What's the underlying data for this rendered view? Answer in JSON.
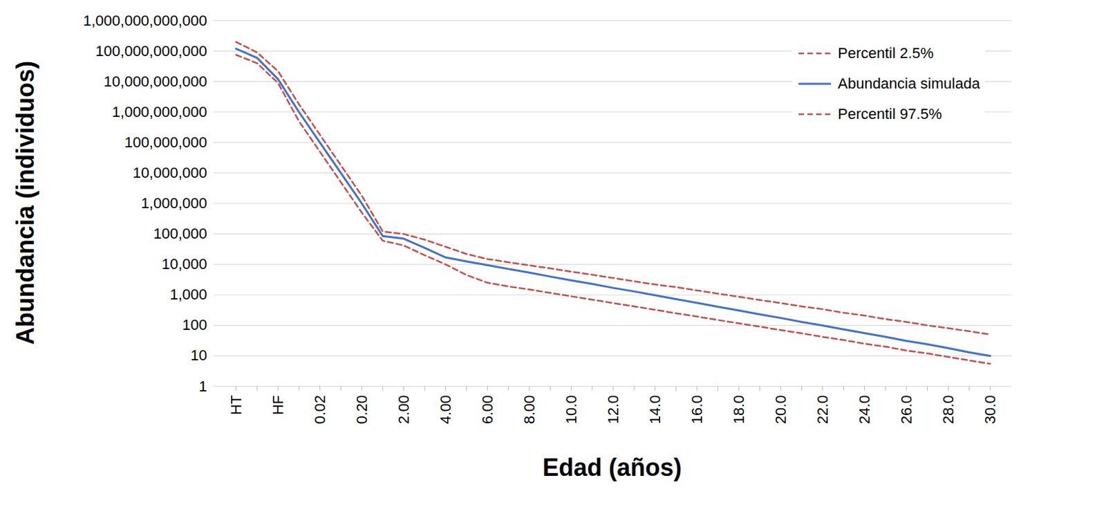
{
  "chart_data": {
    "type": "line",
    "x_label": "Edad (años)",
    "y_label": "Abundancia (individuos)",
    "categories": [
      "HT",
      null,
      "HF",
      null,
      "0.02",
      null,
      "0.20",
      null,
      "2.00",
      null,
      "4.00",
      null,
      "6.00",
      null,
      "8.00",
      null,
      "10.0",
      null,
      "12.0",
      null,
      "14.0",
      null,
      "16.0",
      null,
      "18.0",
      null,
      "20.0",
      null,
      "22.0",
      null,
      "24.0",
      null,
      "26.0",
      null,
      "28.0",
      null,
      "30.0"
    ],
    "series": [
      {
        "name": "Percentil 2.5%",
        "color": "#c0504d",
        "line_style": "dashed",
        "values": [
          75000000000,
          40000000000,
          9000000000,
          500000000,
          50000000,
          5000000,
          500000,
          60000,
          42000,
          20000,
          10000,
          4500,
          2500,
          1900,
          1500,
          1160,
          900,
          700,
          540,
          420,
          325,
          250,
          195,
          150,
          117,
          91,
          70,
          55,
          42,
          33,
          25,
          20,
          15,
          12,
          9.2,
          7.1,
          5.5
        ]
      },
      {
        "name": "Abundancia simulada",
        "color": "#4472c4",
        "line_style": "solid",
        "values": [
          120000000000,
          60000000000,
          12000000000,
          1000000000,
          100000000,
          10000000,
          1000000,
          85000,
          70000,
          35000,
          17000,
          12500,
          9500,
          7100,
          5400,
          4000,
          3000,
          2300,
          1700,
          1300,
          970,
          730,
          550,
          410,
          310,
          230,
          175,
          130,
          99,
          74,
          56,
          42,
          31,
          24,
          18,
          13,
          10
        ]
      },
      {
        "name": "Percentil 97.5%",
        "color": "#c0504d",
        "line_style": "dashed",
        "values": [
          200000000000,
          90000000000,
          22000000000,
          1800000000,
          180000000,
          18000000,
          1800000,
          120000,
          100000,
          65000,
          38000,
          22000,
          15000,
          11800,
          9300,
          7400,
          5800,
          4600,
          3600,
          2800,
          2200,
          1800,
          1400,
          1100,
          870,
          680,
          540,
          420,
          340,
          260,
          210,
          160,
          130,
          100,
          81,
          64,
          50
        ]
      }
    ],
    "log": "y",
    "ylim": [
      1,
      1000000000000
    ],
    "yticks": [
      1,
      10,
      100,
      {
        "value": 1000,
        "label": "1,000"
      },
      {
        "value": 10000,
        "label": "10,000"
      },
      {
        "value": 100000,
        "label": "100,000"
      },
      {
        "value": 1000000,
        "label": "1,000,000"
      },
      {
        "value": 10000000,
        "label": "10,000,000"
      },
      {
        "value": 100000000,
        "label": "100,000,000"
      },
      {
        "value": 1000000000,
        "label": "1,000,000,000"
      },
      {
        "value": 10000000000,
        "label": "10,000,000,000"
      },
      {
        "value": 100000000000,
        "label": "100,000,000,000"
      },
      {
        "value": 1000000000000,
        "label": "1,000,000,000,000"
      }
    ],
    "grid": true,
    "legend": "top-right"
  }
}
